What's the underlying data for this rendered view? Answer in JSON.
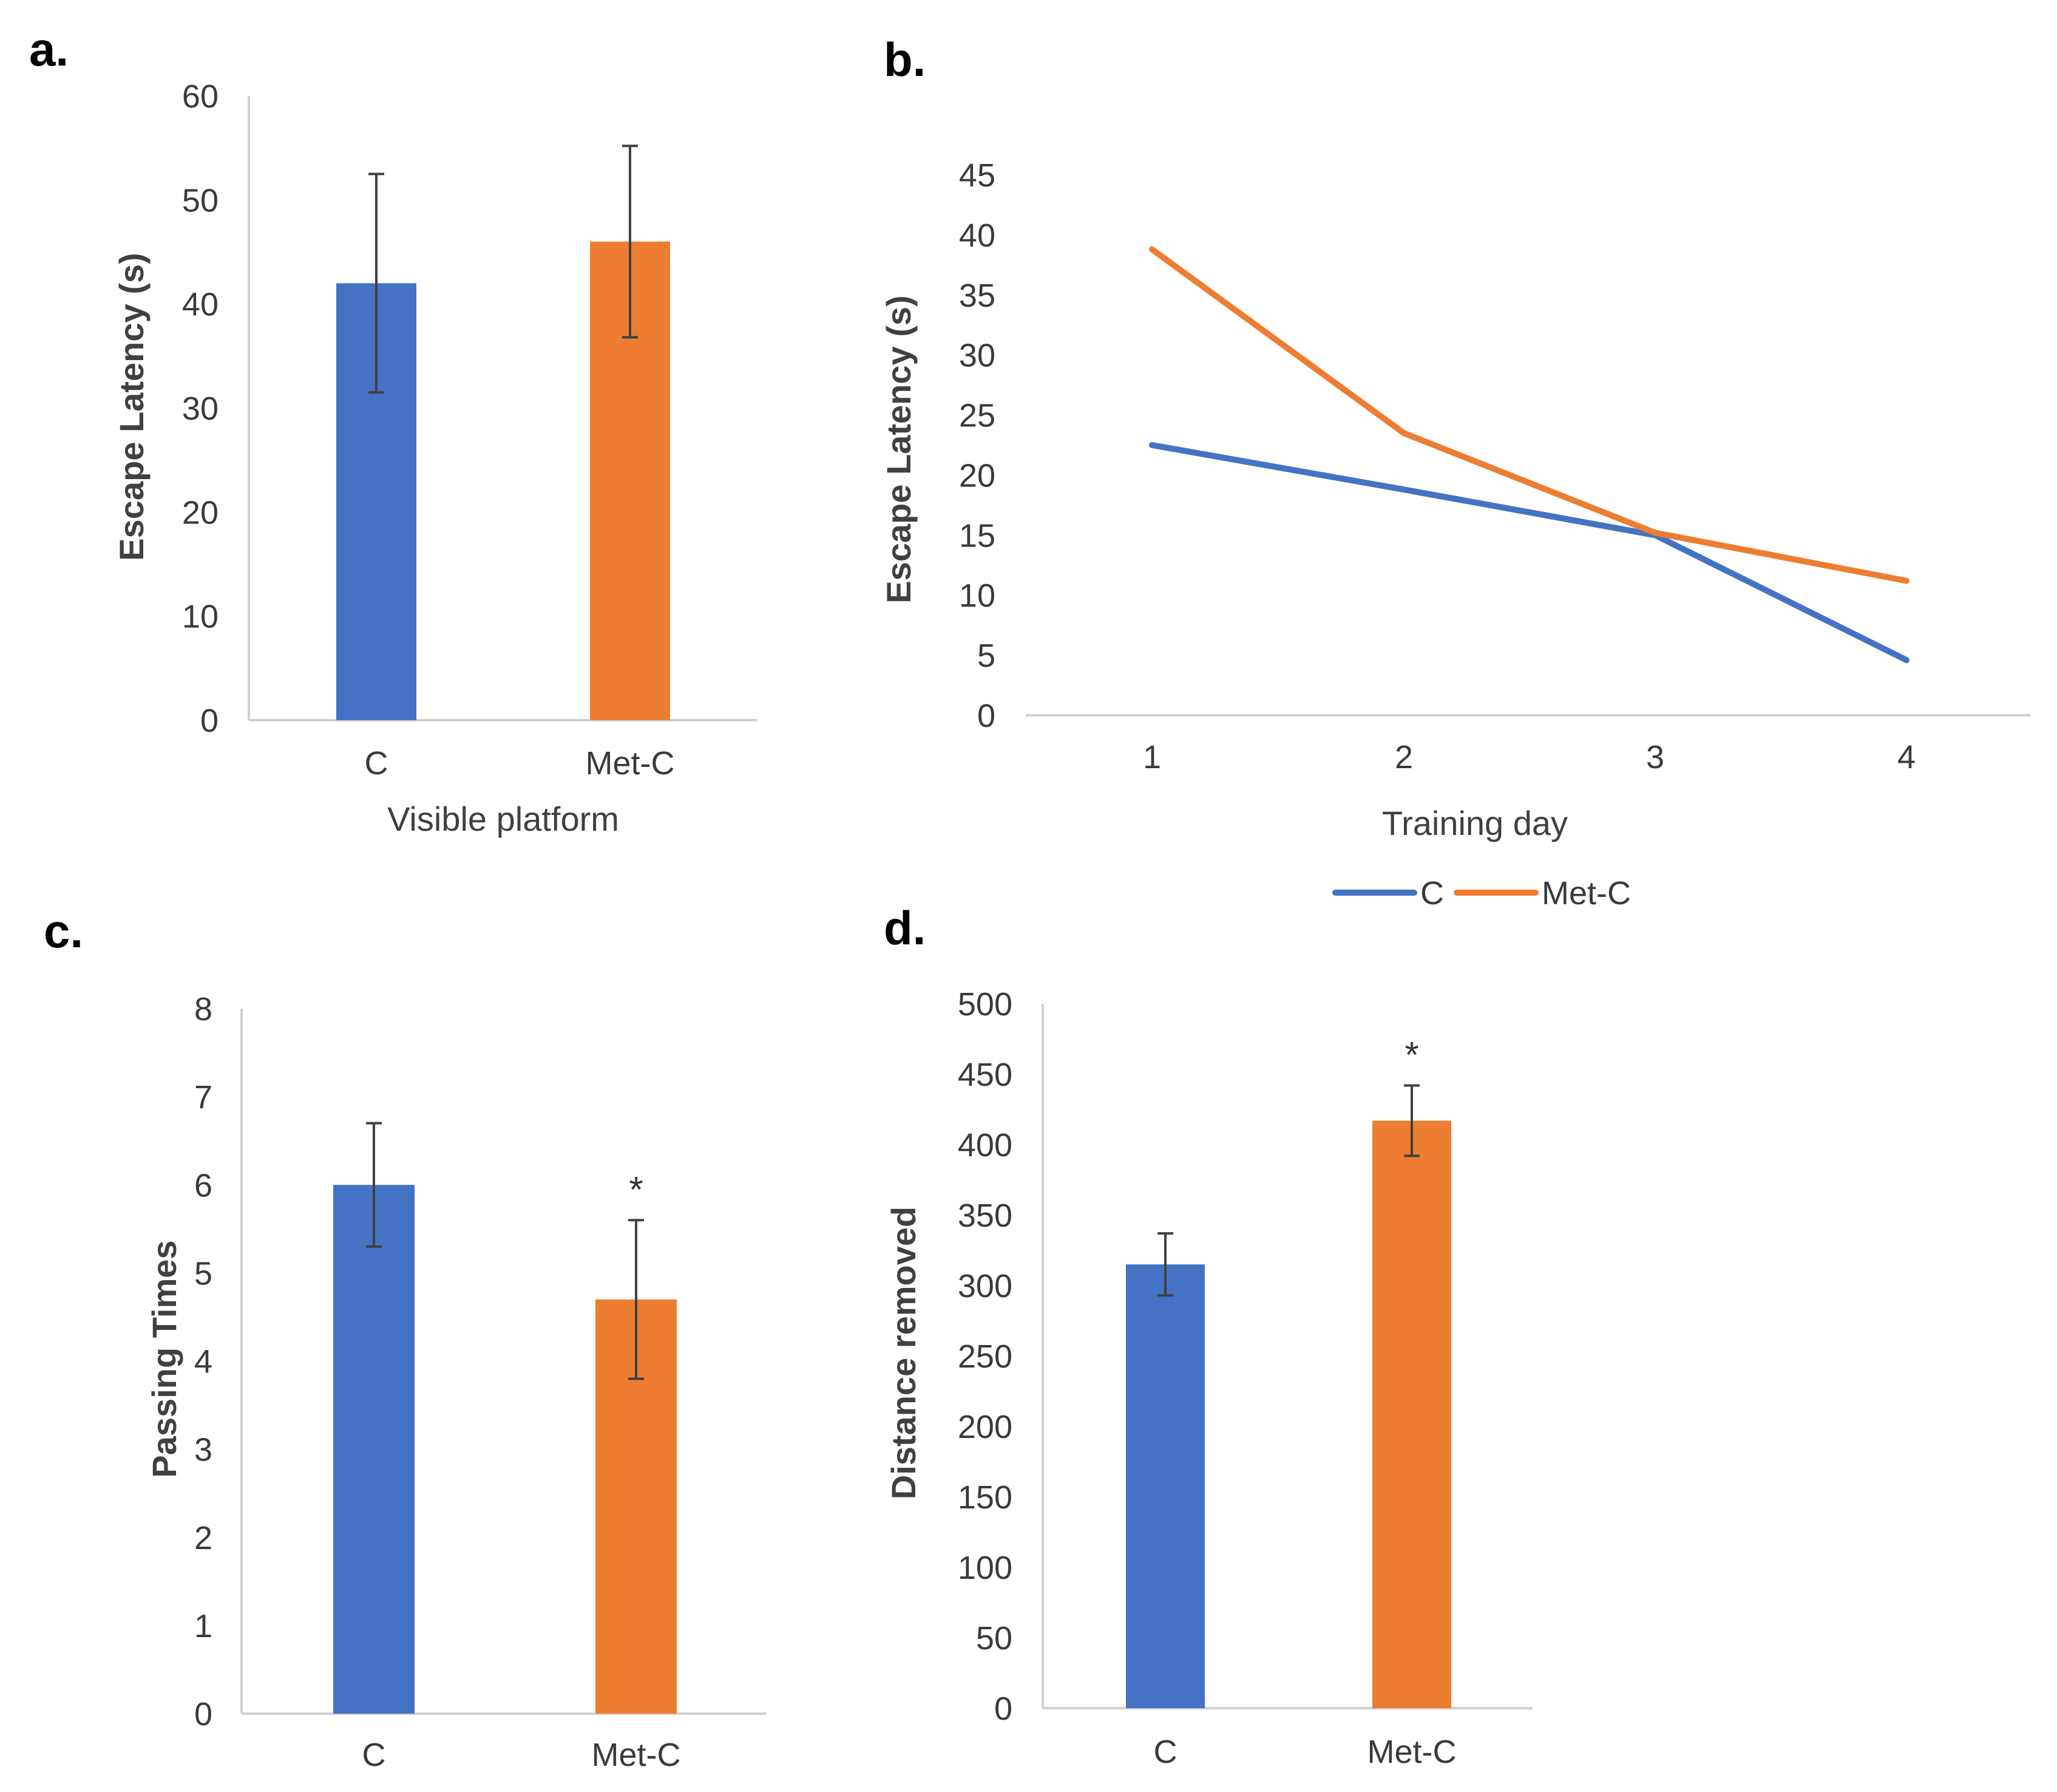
{
  "colors": {
    "C": "#4472C4",
    "Met-C": "#ED7D31",
    "axis": "#D0D0D0",
    "error": "#404040"
  },
  "chart_data": [
    {
      "panel": "a.",
      "type": "bar",
      "categories": [
        "C",
        "Met-C"
      ],
      "values": [
        42,
        46
      ],
      "errors": [
        10.5,
        9.2
      ],
      "ylabel": "Escape Latency (s)",
      "xlabel": "Visible platform",
      "ylim": [
        0,
        60
      ],
      "yticks": [
        0,
        10,
        20,
        30,
        40,
        50,
        60
      ],
      "annotations": [
        "",
        ""
      ],
      "grid": false
    },
    {
      "panel": "b.",
      "type": "line",
      "x": [
        "1",
        "2",
        "3",
        "4"
      ],
      "series": [
        {
          "name": "C",
          "values": [
            22.5,
            18.8,
            15.0,
            4.6
          ]
        },
        {
          "name": "Met-C",
          "values": [
            38.8,
            23.5,
            15.2,
            11.2
          ]
        }
      ],
      "ylabel": "Escape Latency (s)",
      "xlabel": "Training day",
      "ylim": [
        0,
        45
      ],
      "yticks": [
        0,
        5,
        10,
        15,
        20,
        25,
        30,
        35,
        40,
        45
      ],
      "legend": "bottom",
      "grid": false
    },
    {
      "panel": "c.",
      "type": "bar",
      "categories": [
        "C",
        "Met-C"
      ],
      "values": [
        6.0,
        4.7
      ],
      "errors": [
        0.7,
        0.9
      ],
      "ylabel": "Passing Times",
      "xlabel": "",
      "ylim": [
        0,
        8
      ],
      "yticks": [
        0,
        1,
        2,
        3,
        4,
        5,
        6,
        7,
        8
      ],
      "annotations": [
        "",
        "*"
      ],
      "grid": false
    },
    {
      "panel": "d.",
      "type": "bar",
      "categories": [
        "C",
        "Met-C"
      ],
      "values": [
        315,
        417
      ],
      "errors": [
        22,
        25
      ],
      "ylabel": "Distance removed",
      "xlabel": "",
      "ylim": [
        0,
        500
      ],
      "yticks": [
        0,
        50,
        100,
        150,
        200,
        250,
        300,
        350,
        400,
        450,
        500
      ],
      "annotations": [
        "",
        "*"
      ],
      "grid": false
    }
  ]
}
